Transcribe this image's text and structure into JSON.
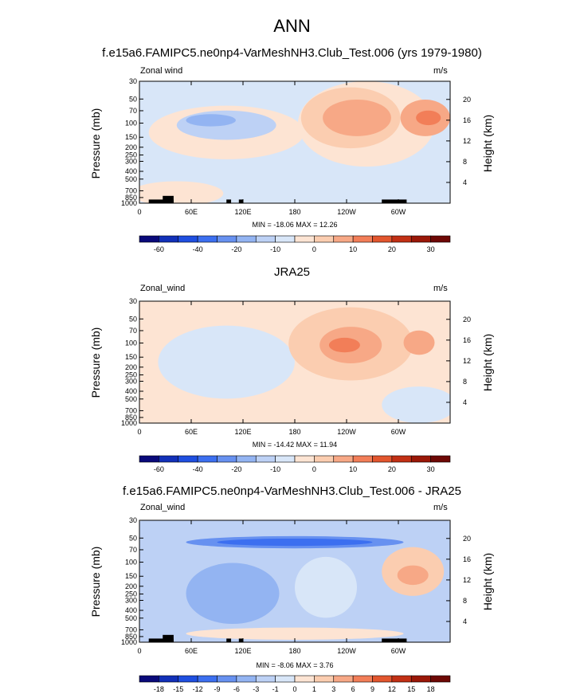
{
  "figure": {
    "season": "ANN"
  },
  "chart_data": [
    {
      "type": "contour",
      "title": "f.e15a6.FAMIPC5.ne0np4-VarMeshNH3.Club_Test.006 (yrs 1979-1980)",
      "variable": "Zonal wind",
      "units": "m/s",
      "ylabel": "Pressure (mb)",
      "ylabel_right": "Height (km)",
      "x_ticks": [
        "0",
        "60E",
        "120E",
        "180",
        "120W",
        "60W"
      ],
      "y_ticks": [
        "30",
        "50",
        "70",
        "100",
        "150",
        "200",
        "250",
        "300",
        "400",
        "500",
        "700",
        "850",
        "1000"
      ],
      "height_ticks": [
        "20",
        "16",
        "12",
        "8",
        "4"
      ],
      "min": -18.06,
      "max": 12.26,
      "min_max_text": "MIN = -18.06  MAX = 12.26",
      "colorbar_ticks": [
        "-60",
        "-40",
        "-20",
        "-10",
        "0",
        "10",
        "20",
        "30"
      ],
      "colors": [
        "#0a0a7a",
        "#1230b8",
        "#1f4fe0",
        "#3c6ff0",
        "#6791f0",
        "#93b4f2",
        "#bdd1f5",
        "#d8e6f8",
        "#fde4d3",
        "#fbcdb0",
        "#f7a886",
        "#f27e58",
        "#e2562e",
        "#c23015",
        "#9a1808",
        "#6e0805"
      ]
    },
    {
      "type": "contour",
      "title": "JRA25",
      "variable": "Zonal_wind",
      "units": "m/s",
      "ylabel": "Pressure (mb)",
      "ylabel_right": "Height (km)",
      "x_ticks": [
        "0",
        "60E",
        "120E",
        "180",
        "120W",
        "60W"
      ],
      "y_ticks": [
        "30",
        "50",
        "70",
        "100",
        "150",
        "200",
        "250",
        "300",
        "400",
        "500",
        "700",
        "850",
        "1000"
      ],
      "height_ticks": [
        "20",
        "16",
        "12",
        "8",
        "4"
      ],
      "min": -14.42,
      "max": 11.94,
      "min_max_text": "MIN = -14.42  MAX = 11.94",
      "colorbar_ticks": [
        "-60",
        "-40",
        "-20",
        "-10",
        "0",
        "10",
        "20",
        "30"
      ],
      "colors": [
        "#0a0a7a",
        "#1230b8",
        "#1f4fe0",
        "#3c6ff0",
        "#6791f0",
        "#93b4f2",
        "#bdd1f5",
        "#d8e6f8",
        "#fde4d3",
        "#fbcdb0",
        "#f7a886",
        "#f27e58",
        "#e2562e",
        "#c23015",
        "#9a1808",
        "#6e0805"
      ]
    },
    {
      "type": "contour",
      "title": "f.e15a6.FAMIPC5.ne0np4-VarMeshNH3.Club_Test.006 - JRA25",
      "variable": "Zonal_wind",
      "units": "m/s",
      "ylabel": "Pressure (mb)",
      "ylabel_right": "Height (km)",
      "x_ticks": [
        "0",
        "60E",
        "120E",
        "180",
        "120W",
        "60W"
      ],
      "y_ticks": [
        "30",
        "50",
        "70",
        "100",
        "150",
        "200",
        "250",
        "300",
        "400",
        "500",
        "700",
        "850",
        "1000"
      ],
      "height_ticks": [
        "20",
        "16",
        "12",
        "8",
        "4"
      ],
      "min": -8.06,
      "max": 3.76,
      "min_max_text": "MIN = -8.06  MAX =  3.76",
      "colorbar_ticks": [
        "-18",
        "-15",
        "-12",
        "-9",
        "-6",
        "-3",
        "-1",
        "0",
        "1",
        "3",
        "6",
        "9",
        "12",
        "15",
        "18"
      ],
      "colors": [
        "#0a0a7a",
        "#1230b8",
        "#1f4fe0",
        "#3c6ff0",
        "#6791f0",
        "#93b4f2",
        "#bdd1f5",
        "#d8e6f8",
        "#fde4d3",
        "#fbcdb0",
        "#f7a886",
        "#f27e58",
        "#e2562e",
        "#c23015",
        "#9a1808",
        "#6e0805"
      ]
    }
  ]
}
